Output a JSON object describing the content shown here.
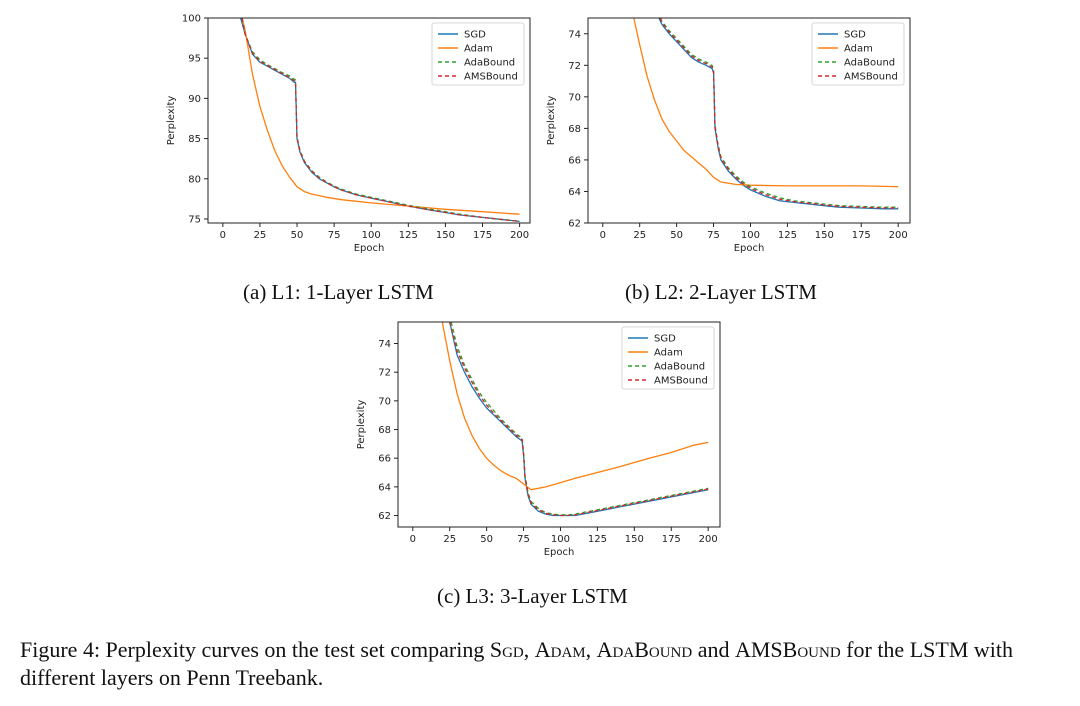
{
  "figure": {
    "caption_prefix": "Figure 4: Perplexity curves on the test set comparing ",
    "sgd": "Sgd",
    "sep1": ", ",
    "adam": "Adam",
    "sep2": ", ",
    "adabound": "AdaBound",
    "sep3": " and ",
    "amsbound": "AMSBound",
    "caption_suffix": " for the LSTM with different layers on Penn Treebank."
  },
  "colors": {
    "SGD": "#1f77b4",
    "Adam": "#ff7f0e",
    "AdaBound": "#2ca02c",
    "AMSBound": "#d62728"
  },
  "chart_data": [
    {
      "type": "line",
      "subcaption": "(a) L1: 1-Layer LSTM",
      "xlabel": "Epoch",
      "ylabel": "Perplexity",
      "xlim": [
        -10,
        207
      ],
      "ylim": [
        74.5,
        100
      ],
      "xticks": [
        0,
        25,
        50,
        75,
        100,
        125,
        150,
        175,
        200
      ],
      "yticks": [
        75,
        80,
        85,
        90,
        95,
        100
      ],
      "legend": [
        "SGD",
        "Adam",
        "AdaBound",
        "AMSBound"
      ],
      "legend_position": "top-right",
      "series": [
        {
          "name": "SGD",
          "x": [
            12,
            15,
            20,
            25,
            30,
            35,
            40,
            45,
            48,
            49,
            50,
            52,
            55,
            60,
            65,
            70,
            75,
            80,
            90,
            100,
            110,
            125,
            140,
            150,
            160,
            175,
            190,
            200
          ],
          "y": [
            100,
            98,
            95.5,
            94.5,
            94,
            93.5,
            93,
            92.5,
            92,
            92,
            85,
            83.3,
            82,
            80.8,
            80,
            79.5,
            79,
            78.6,
            78,
            77.6,
            77.2,
            76.6,
            76.1,
            75.8,
            75.5,
            75.2,
            74.9,
            74.7
          ]
        },
        {
          "name": "Adam",
          "x": [
            13,
            15,
            20,
            25,
            30,
            35,
            40,
            45,
            50,
            55,
            60,
            70,
            80,
            90,
            100,
            125,
            150,
            175,
            200
          ],
          "y": [
            100,
            98.5,
            93,
            89,
            86,
            83.5,
            81.6,
            80.2,
            79,
            78.4,
            78.1,
            77.7,
            77.4,
            77.2,
            77,
            76.6,
            76.2,
            75.9,
            75.6
          ]
        },
        {
          "name": "AdaBound",
          "x": [
            13,
            15,
            20,
            25,
            30,
            35,
            40,
            45,
            48,
            49,
            50,
            52,
            55,
            60,
            65,
            70,
            75,
            80,
            90,
            100,
            110,
            125,
            140,
            150,
            160,
            175,
            190,
            200
          ],
          "y": [
            100,
            98,
            95.8,
            94.8,
            94.2,
            93.7,
            93.2,
            92.8,
            92.4,
            92.3,
            85.2,
            83.5,
            82.2,
            81,
            80.2,
            79.6,
            79.1,
            78.7,
            78.1,
            77.7,
            77.3,
            76.7,
            76.2,
            75.9,
            75.6,
            75.2,
            74.9,
            74.7
          ]
        },
        {
          "name": "AMSBound",
          "x": [
            13,
            15,
            20,
            25,
            30,
            35,
            40,
            45,
            48,
            49,
            50,
            52,
            55,
            60,
            65,
            70,
            75,
            80,
            90,
            100,
            110,
            125,
            140,
            150,
            160,
            175,
            190,
            200
          ],
          "y": [
            100,
            98,
            95.6,
            94.6,
            94.1,
            93.6,
            93.1,
            92.6,
            92.2,
            92.1,
            85.1,
            83.4,
            82.1,
            80.9,
            80.1,
            79.5,
            79,
            78.6,
            78,
            77.6,
            77.2,
            76.6,
            76.1,
            75.8,
            75.5,
            75.2,
            74.9,
            74.7
          ]
        }
      ]
    },
    {
      "type": "line",
      "subcaption": "(b) L2: 2-Layer LSTM",
      "xlabel": "Epoch",
      "ylabel": "Perplexity",
      "xlim": [
        -10,
        208
      ],
      "ylim": [
        62,
        75
      ],
      "xticks": [
        0,
        25,
        50,
        75,
        100,
        125,
        150,
        175,
        200
      ],
      "yticks": [
        62,
        64,
        66,
        68,
        70,
        72,
        74
      ],
      "legend": [
        "SGD",
        "Adam",
        "AdaBound",
        "AMSBound"
      ],
      "legend_position": "top-right",
      "series": [
        {
          "name": "SGD",
          "x": [
            38,
            40,
            45,
            50,
            55,
            60,
            65,
            70,
            74,
            75,
            76,
            78,
            80,
            85,
            90,
            95,
            100,
            110,
            120,
            130,
            140,
            150,
            160,
            175,
            190,
            200
          ],
          "y": [
            75,
            74.6,
            74,
            73.5,
            73,
            72.5,
            72.2,
            72,
            71.8,
            71.5,
            68,
            66.8,
            66,
            65.3,
            64.8,
            64.4,
            64.1,
            63.7,
            63.4,
            63.3,
            63.2,
            63.1,
            63.0,
            62.95,
            62.9,
            62.9
          ]
        },
        {
          "name": "Adam",
          "x": [
            21,
            25,
            30,
            35,
            40,
            45,
            50,
            55,
            60,
            65,
            70,
            75,
            80,
            90,
            100,
            125,
            150,
            175,
            200
          ],
          "y": [
            75,
            73.3,
            71.3,
            69.8,
            68.6,
            67.8,
            67.2,
            66.6,
            66.2,
            65.8,
            65.4,
            64.9,
            64.6,
            64.45,
            64.4,
            64.35,
            64.35,
            64.35,
            64.3
          ]
        },
        {
          "name": "AdaBound",
          "x": [
            39,
            40,
            45,
            50,
            55,
            60,
            65,
            70,
            74,
            75,
            76,
            78,
            80,
            85,
            90,
            95,
            100,
            110,
            120,
            130,
            140,
            150,
            160,
            175,
            190,
            200
          ],
          "y": [
            75,
            74.8,
            74.2,
            73.7,
            73.2,
            72.7,
            72.4,
            72.2,
            72,
            71.7,
            68.2,
            67,
            66.2,
            65.5,
            65,
            64.6,
            64.3,
            63.9,
            63.6,
            63.4,
            63.3,
            63.2,
            63.1,
            63.05,
            63.0,
            63.0
          ]
        },
        {
          "name": "AMSBound",
          "x": [
            39,
            40,
            45,
            50,
            55,
            60,
            65,
            70,
            74,
            75,
            76,
            78,
            80,
            85,
            90,
            95,
            100,
            110,
            120,
            130,
            140,
            150,
            160,
            175,
            190,
            200
          ],
          "y": [
            75,
            74.7,
            74.1,
            73.6,
            73.1,
            72.6,
            72.3,
            72.1,
            71.9,
            71.6,
            68.1,
            66.9,
            66.1,
            65.4,
            64.9,
            64.5,
            64.2,
            63.8,
            63.5,
            63.35,
            63.25,
            63.15,
            63.05,
            63.0,
            62.95,
            62.95
          ]
        }
      ]
    },
    {
      "type": "line",
      "subcaption": "(c) L3: 3-Layer LSTM",
      "xlabel": "Epoch",
      "ylabel": "Perplexity",
      "xlim": [
        -10,
        208
      ],
      "ylim": [
        61.2,
        75.5
      ],
      "xticks": [
        0,
        25,
        50,
        75,
        100,
        125,
        150,
        175,
        200
      ],
      "yticks": [
        62,
        64,
        66,
        68,
        70,
        72,
        74
      ],
      "legend": [
        "SGD",
        "Adam",
        "AdaBound",
        "AMSBound"
      ],
      "legend_position": "top-right",
      "series": [
        {
          "name": "SGD",
          "x": [
            25,
            30,
            35,
            40,
            45,
            50,
            55,
            60,
            65,
            70,
            74,
            75,
            76,
            78,
            80,
            85,
            90,
            95,
            100,
            105,
            110,
            120,
            130,
            140,
            150,
            160,
            170,
            180,
            190,
            200
          ],
          "y": [
            75.5,
            73.2,
            72,
            71,
            70.2,
            69.5,
            69,
            68.5,
            68,
            67.5,
            67.2,
            66.2,
            64.6,
            63.4,
            62.8,
            62.3,
            62.1,
            62.0,
            62.0,
            62.0,
            62.0,
            62.2,
            62.4,
            62.6,
            62.8,
            63.0,
            63.2,
            63.4,
            63.6,
            63.8
          ]
        },
        {
          "name": "Adam",
          "x": [
            20,
            25,
            30,
            35,
            40,
            45,
            50,
            55,
            60,
            65,
            70,
            75,
            80,
            90,
            100,
            110,
            125,
            140,
            150,
            160,
            175,
            190,
            200
          ],
          "y": [
            75.5,
            72.8,
            70.5,
            68.8,
            67.6,
            66.7,
            66,
            65.5,
            65.1,
            64.8,
            64.6,
            64.2,
            63.8,
            64,
            64.3,
            64.6,
            65.0,
            65.4,
            65.7,
            66.0,
            66.4,
            66.9,
            67.1
          ]
        },
        {
          "name": "AdaBound",
          "x": [
            26,
            30,
            35,
            40,
            45,
            50,
            55,
            60,
            65,
            70,
            74,
            75,
            76,
            78,
            80,
            85,
            90,
            95,
            100,
            105,
            110,
            120,
            130,
            140,
            150,
            160,
            170,
            180,
            190,
            200
          ],
          "y": [
            75.5,
            73.8,
            72.5,
            71.5,
            70.6,
            69.9,
            69.3,
            68.7,
            68.2,
            67.7,
            67.4,
            66.4,
            64.8,
            63.6,
            63,
            62.5,
            62.2,
            62.1,
            62.05,
            62.05,
            62.1,
            62.3,
            62.5,
            62.7,
            62.9,
            63.1,
            63.3,
            63.5,
            63.7,
            63.9
          ]
        },
        {
          "name": "AMSBound",
          "x": [
            25,
            30,
            35,
            40,
            45,
            50,
            55,
            60,
            65,
            70,
            74,
            75,
            76,
            78,
            80,
            85,
            90,
            95,
            100,
            105,
            110,
            120,
            130,
            140,
            150,
            160,
            170,
            180,
            190,
            200
          ],
          "y": [
            75.5,
            73.5,
            72.3,
            71.3,
            70.4,
            69.7,
            69.1,
            68.6,
            68.1,
            67.6,
            67.3,
            66.3,
            64.7,
            63.5,
            62.9,
            62.4,
            62.15,
            62.05,
            62.0,
            62.0,
            62.05,
            62.25,
            62.45,
            62.65,
            62.85,
            63.05,
            63.25,
            63.45,
            63.65,
            63.85
          ]
        }
      ]
    }
  ]
}
